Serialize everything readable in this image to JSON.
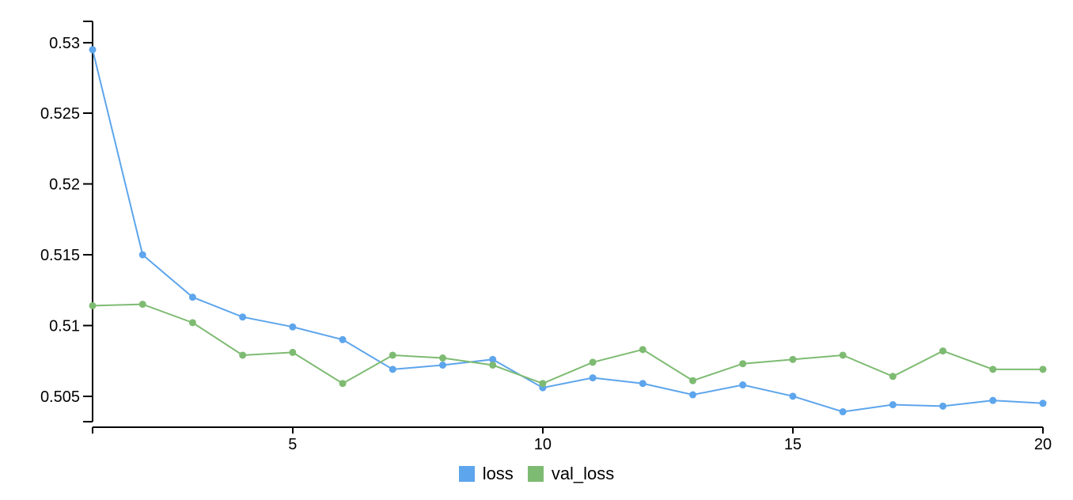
{
  "chart_data": {
    "type": "line",
    "title": "",
    "xlabel": "",
    "ylabel": "",
    "x": [
      1,
      2,
      3,
      4,
      5,
      6,
      7,
      8,
      9,
      10,
      11,
      12,
      13,
      14,
      15,
      16,
      17,
      18,
      19,
      20
    ],
    "xlim": [
      1,
      20
    ],
    "ylim": [
      0.5032,
      0.5315
    ],
    "x_ticks": [
      5,
      10,
      15,
      20
    ],
    "y_ticks": [
      0.505,
      0.51,
      0.515,
      0.52,
      0.525,
      0.53
    ],
    "x_tick_labels": [
      "5",
      "10",
      "15",
      "20"
    ],
    "y_tick_labels": [
      "0.505",
      "0.51",
      "0.515",
      "0.52",
      "0.525",
      "0.53"
    ],
    "grid": false,
    "legend_position": "bottom-center",
    "series": [
      {
        "name": "loss",
        "color": "#5da5ec",
        "values": [
          0.5295,
          0.515,
          0.512,
          0.5106,
          0.5099,
          0.509,
          0.5069,
          0.5072,
          0.5076,
          0.5056,
          0.5063,
          0.5059,
          0.5051,
          0.5058,
          0.505,
          0.5039,
          0.5044,
          0.5043,
          0.5047,
          0.5045
        ]
      },
      {
        "name": "val_loss",
        "color": "#7ebb72",
        "values": [
          0.5114,
          0.5115,
          0.5102,
          0.5079,
          0.5081,
          0.5059,
          0.5079,
          0.5077,
          0.5072,
          0.5059,
          0.5074,
          0.5083,
          0.5061,
          0.5073,
          0.5076,
          0.5079,
          0.5064,
          0.5082,
          0.5069,
          0.5069
        ]
      }
    ]
  }
}
